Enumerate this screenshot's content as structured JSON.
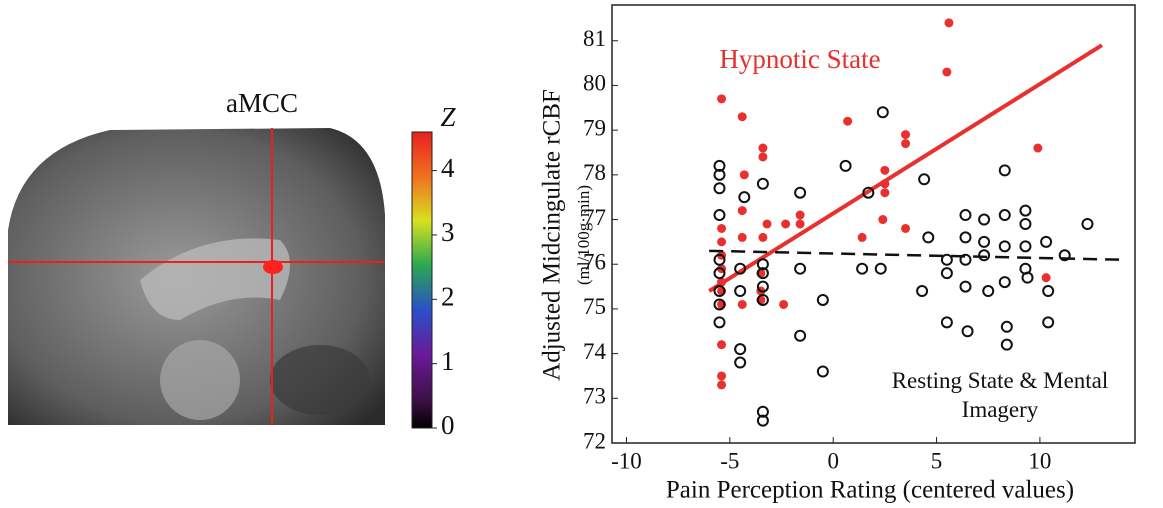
{
  "image": {
    "label": "aMCC"
  },
  "colorbar": {
    "title": "Z",
    "lim": [
      0,
      4.6
    ],
    "ticks": [
      0,
      1,
      2,
      3,
      4
    ]
  },
  "chart_data": {
    "type": "scatter",
    "x_label": "Pain Perception Rating (centered values)",
    "y_label": "Adjusted Midcingulate rCBF",
    "y_sublabel": "(ml/100g·min)",
    "xlim": [
      -10.7,
      14.6
    ],
    "xticks": [
      -10,
      -5,
      0,
      5,
      10
    ],
    "ylim": [
      72,
      81.8
    ],
    "yticks": [
      72,
      73,
      74,
      75,
      76,
      77,
      78,
      79,
      80,
      81
    ],
    "series": [
      {
        "name": "Hypnotic State",
        "color": "#e8312f",
        "marker": "filled",
        "x": [
          5.6,
          5.5,
          -5.4,
          -4.4,
          0.7,
          -3.4,
          -3.4,
          3.5,
          3.5,
          2.5,
          2.5,
          2.5,
          -4.3,
          -4.4,
          -3.2,
          -1.6,
          -1.6,
          -2.3,
          2.4,
          1.4,
          3.5,
          -5.4,
          -5.4,
          -5.4,
          -5.4,
          -5.4,
          -4.4,
          -3.4,
          -3.5,
          -3.5,
          -3.5,
          -5.4,
          -5.4,
          -4.4,
          -2.4,
          -5.4,
          -5.4,
          -5.4,
          10.3,
          9.9
        ],
        "values": [
          81.4,
          80.3,
          79.7,
          79.3,
          79.2,
          78.6,
          78.4,
          78.9,
          78.7,
          78.1,
          77.8,
          77.6,
          78.0,
          77.2,
          76.9,
          77.1,
          76.9,
          76.9,
          77.0,
          76.6,
          76.8,
          76.8,
          76.5,
          76.2,
          75.9,
          75.6,
          76.6,
          76.6,
          75.8,
          75.4,
          75.2,
          75.4,
          75.1,
          75.1,
          75.1,
          74.2,
          73.5,
          73.3,
          75.7,
          78.6
        ],
        "fit": {
          "style": "solid",
          "x": [
            -6,
            13
          ],
          "values": [
            75.4,
            80.9
          ]
        }
      },
      {
        "name": "Resting State & Mental Imagery",
        "color": "#111111",
        "marker": "open",
        "x": [
          -5.5,
          -5.5,
          -5.5,
          -4.3,
          -5.5,
          -3.4,
          -1.6,
          2.4,
          0.6,
          1.7,
          4.4,
          -5.5,
          -5.5,
          -5.5,
          -5.5,
          -5.5,
          -4.5,
          -4.5,
          -3.4,
          -3.4,
          -3.4,
          -3.4,
          -1.6,
          -0.5,
          -0.5,
          -1.6,
          -4.5,
          -4.5,
          -3.4,
          -3.4,
          1.4,
          2.3,
          4.6,
          4.3,
          5.5,
          5.5,
          5.5,
          6.4,
          6.4,
          6.4,
          6.4,
          6.5,
          7.3,
          7.3,
          7.3,
          7.5,
          8.3,
          8.3,
          8.3,
          8.4,
          8.4,
          9.3,
          9.3,
          9.3,
          9.3,
          9.4,
          10.3,
          10.4,
          10.4,
          11.2,
          12.3,
          8.3
        ],
        "values": [
          78.2,
          78.0,
          77.7,
          77.5,
          77.1,
          77.8,
          77.6,
          79.4,
          78.2,
          77.6,
          77.9,
          76.1,
          75.8,
          75.4,
          75.1,
          74.7,
          75.9,
          75.4,
          76.0,
          75.8,
          75.5,
          75.2,
          75.9,
          75.2,
          73.6,
          74.4,
          74.1,
          73.8,
          72.7,
          72.5,
          75.9,
          75.9,
          76.6,
          75.4,
          76.1,
          75.8,
          74.7,
          77.1,
          76.6,
          76.1,
          75.5,
          74.5,
          77.0,
          76.5,
          76.2,
          75.4,
          75.6,
          76.4,
          77.1,
          74.6,
          74.2,
          77.2,
          76.9,
          76.4,
          75.9,
          75.7,
          76.5,
          75.4,
          74.7,
          76.2,
          76.9,
          78.1
        ],
        "fit": {
          "style": "dashed",
          "x": [
            -6,
            14
          ],
          "values": [
            76.3,
            76.1
          ]
        }
      }
    ]
  }
}
